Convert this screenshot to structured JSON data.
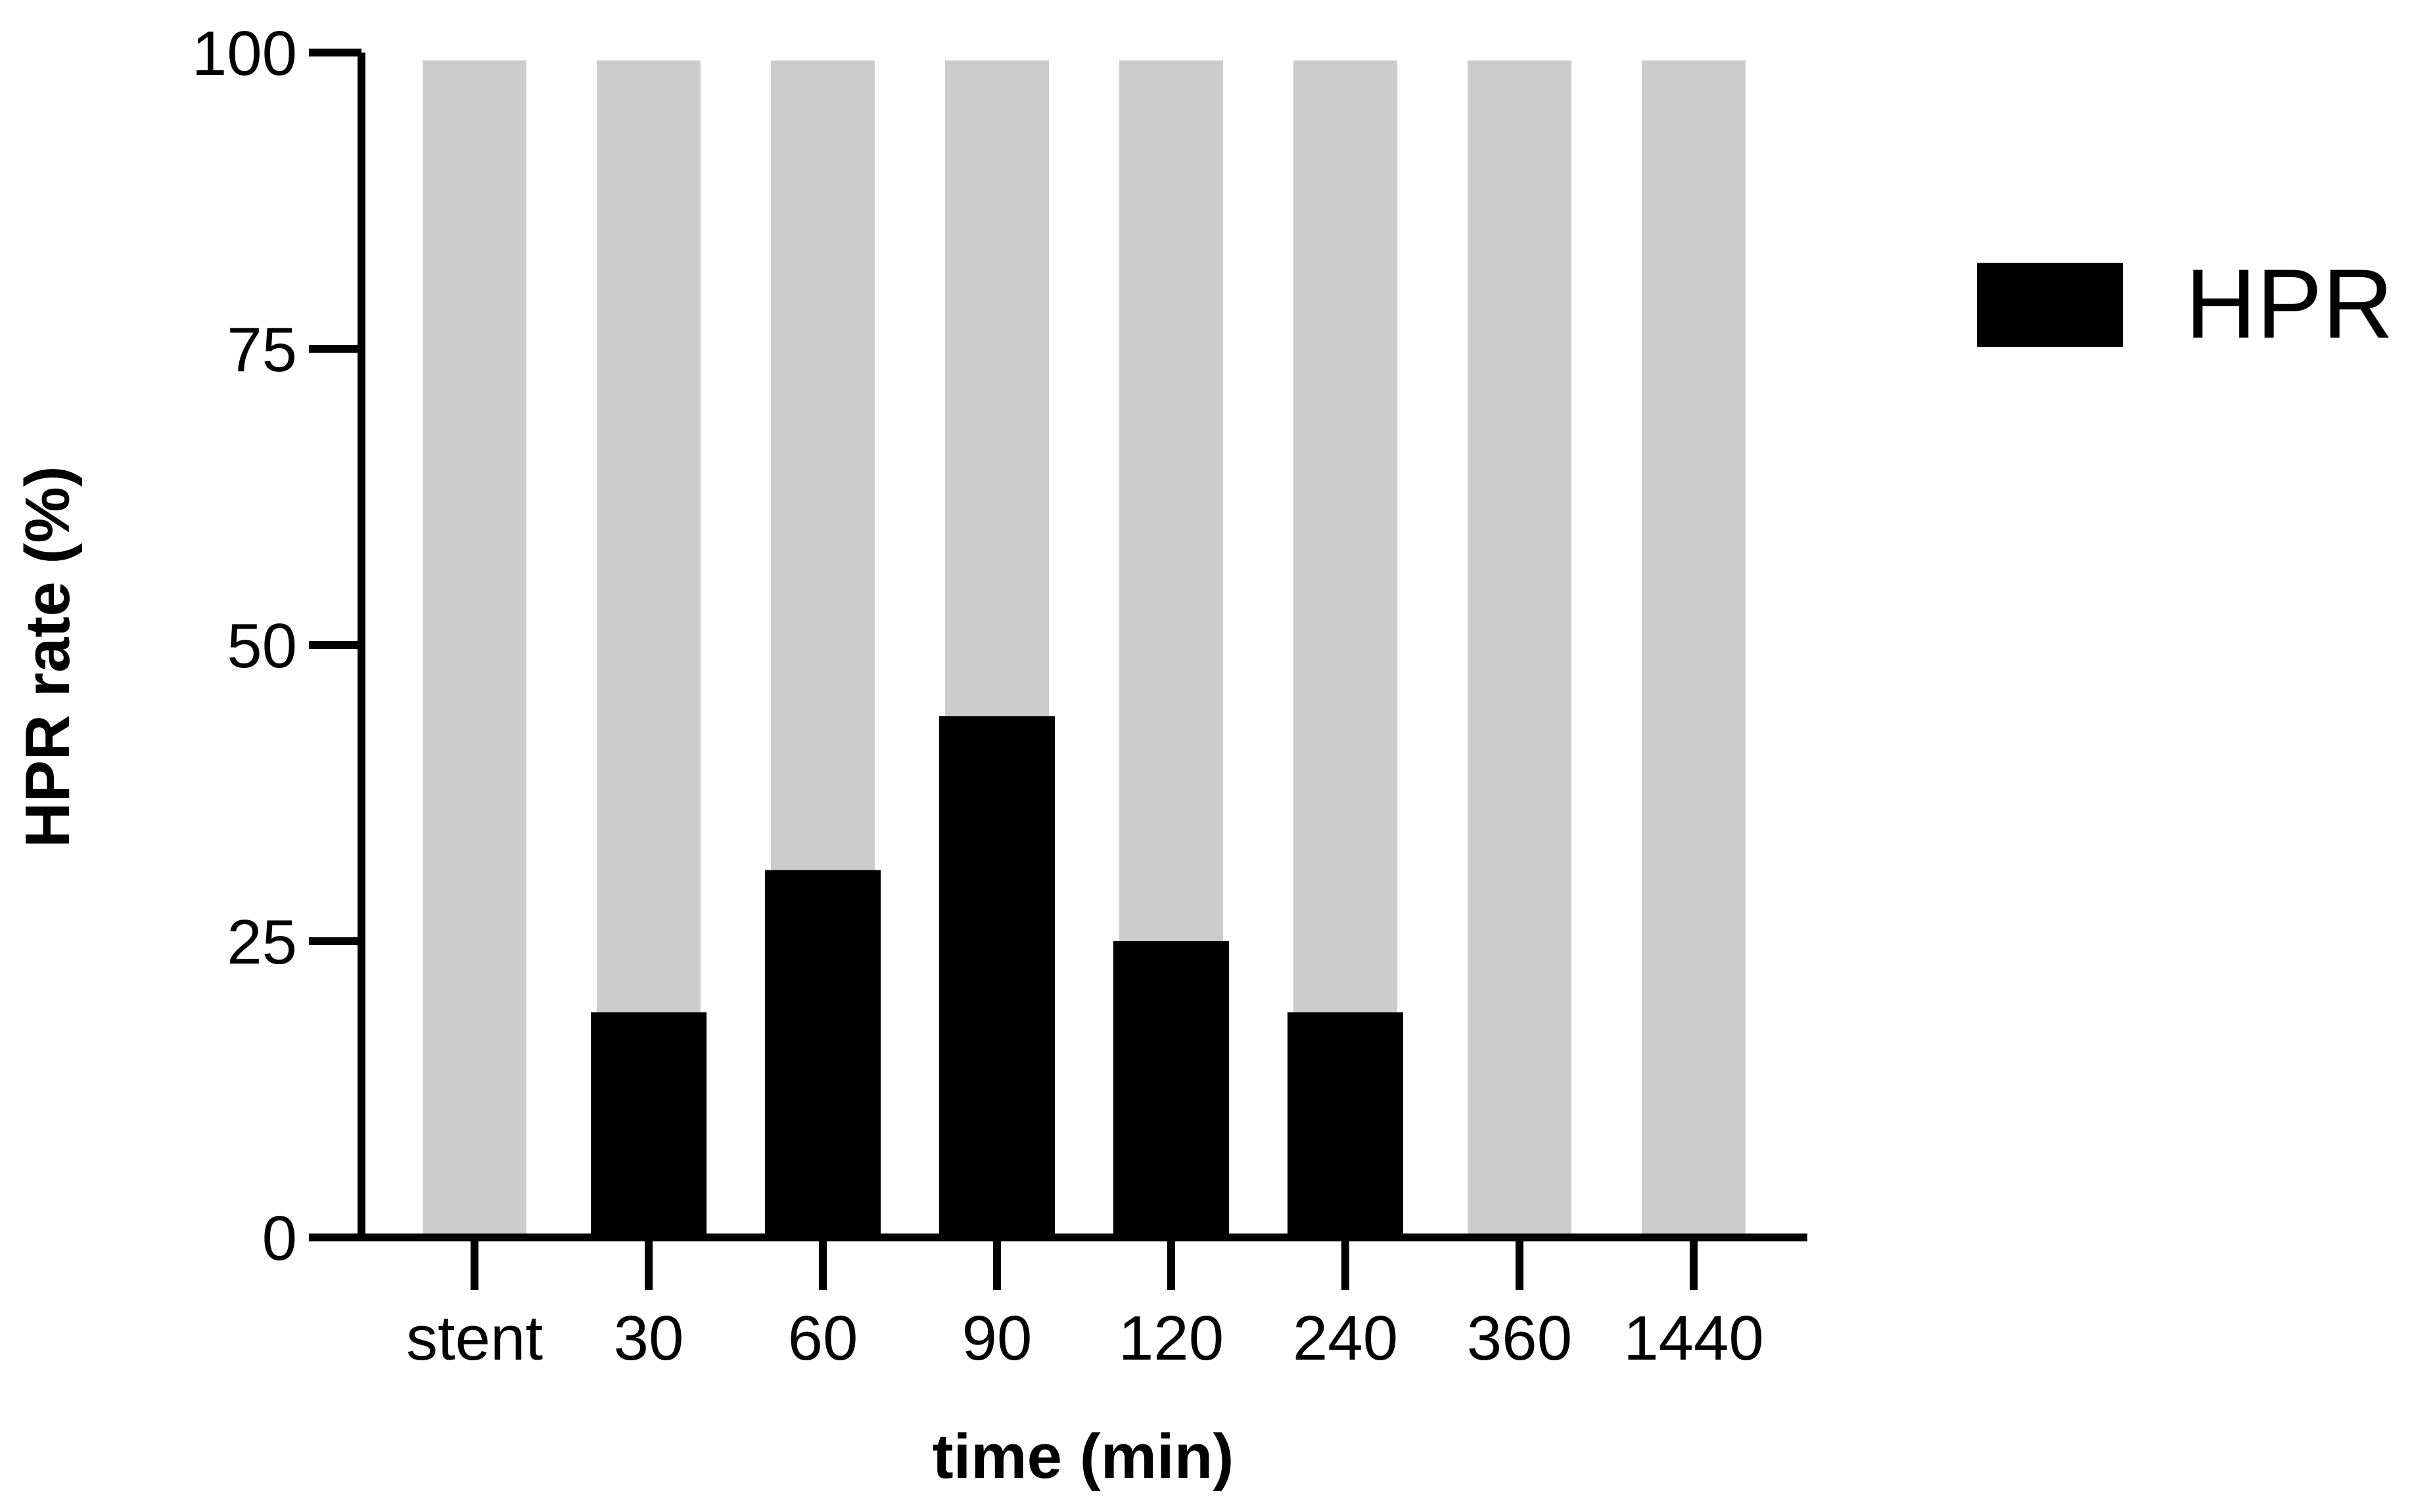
{
  "chart_data": {
    "type": "bar",
    "stacked_background": true,
    "categories": [
      "stent",
      "30",
      "60",
      "90",
      "120",
      "240",
      "360",
      "1440"
    ],
    "series": [
      {
        "name": "HPR",
        "values": [
          0,
          19,
          31,
          44,
          25,
          19,
          0,
          0
        ],
        "color": "#000000"
      }
    ],
    "background_bar_value": 100,
    "background_bar_color": "#cccccc",
    "title": "",
    "xlabel": "time (min)",
    "ylabel": "HPR rate (%)",
    "ylim": [
      0,
      100
    ],
    "yticks": [
      0,
      25,
      50,
      75,
      100
    ],
    "grid": false,
    "legend": {
      "position": "top-right",
      "entries": [
        "HPR"
      ]
    }
  }
}
